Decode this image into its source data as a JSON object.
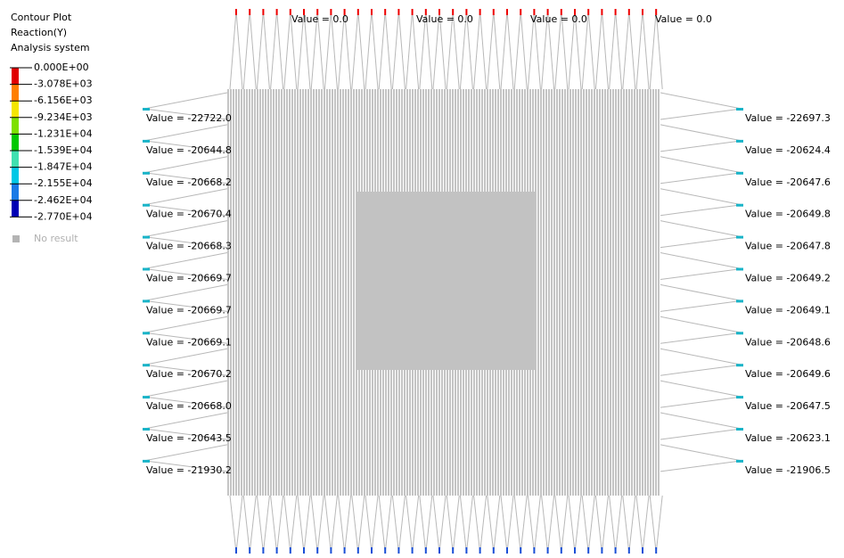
{
  "legend": {
    "title": [
      "Contour Plot",
      "Reaction(Y)",
      "Analysis system"
    ],
    "levels": [
      "0.000E+00",
      "-3.078E+03",
      "-6.156E+03",
      "-9.234E+03",
      "-1.231E+04",
      "-1.539E+04",
      "-1.847E+04",
      "-2.155E+04",
      "-2.462E+04",
      "-2.770E+04"
    ],
    "no_result": "No result"
  },
  "top_labels": [
    "Value = 0.0",
    "Value = 0.0",
    "Value = 0.0",
    "Value = 0.0"
  ],
  "left_labels": [
    "Value = -22722.0",
    "Value = -20644.8",
    "Value = -20668.2",
    "Value = -20670.4",
    "Value = -20668.3",
    "Value = -20669.7",
    "Value = -20669.7",
    "Value = -20669.1",
    "Value = -20670.2",
    "Value = -20668.0",
    "Value = -20643.5",
    "Value = -21930.2"
  ],
  "right_labels": [
    "Value = -22697.3",
    "Value = -20624.4",
    "Value = -20647.6",
    "Value = -20649.8",
    "Value = -20647.8",
    "Value = -20649.2",
    "Value = -20649.1",
    "Value = -20648.6",
    "Value = -20649.6",
    "Value = -20647.5",
    "Value = -20623.1",
    "Value = -21906.5"
  ]
}
